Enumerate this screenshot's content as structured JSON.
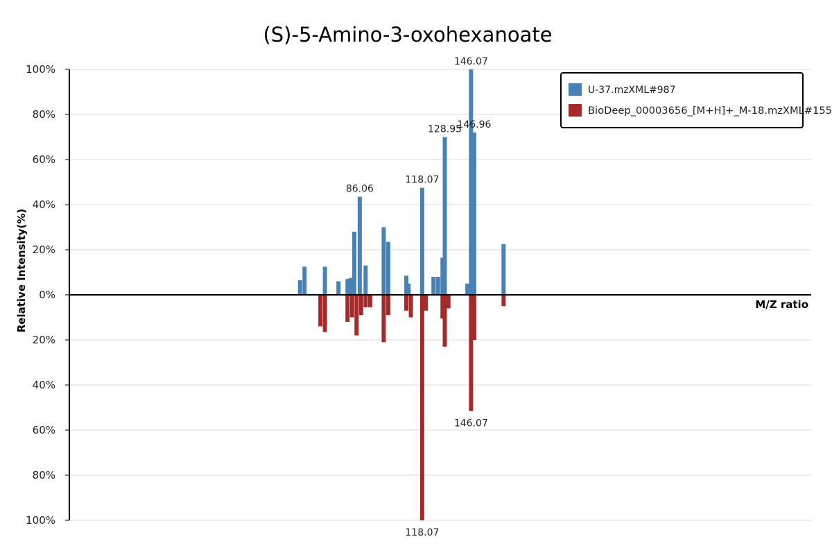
{
  "chart_data": {
    "type": "bar",
    "subtype": "mirror-spectrum",
    "title": "(S)-5-Amino-3-oxohexanoate",
    "xlabel": "M/Z ratio",
    "ylabel": "Relative Intensity(%)",
    "y_ticks_top": [
      "100%",
      "80%",
      "60%",
      "40%",
      "20%",
      "0%"
    ],
    "y_ticks_bottom": [
      "20%",
      "40%",
      "60%",
      "80%",
      "100%"
    ],
    "ylim": [
      -100,
      100
    ],
    "xlim": [
      10,
      174
    ],
    "grid": true,
    "legend_position": "top-right",
    "colors": {
      "top": "#4682b4",
      "bottom": "#a52a2a"
    },
    "series": [
      {
        "name": "U-37.mzXML#987",
        "direction": "up",
        "peaks": [
          {
            "mz": 61.0,
            "intensity": 6.5
          },
          {
            "mz": 62.0,
            "intensity": 12.5
          },
          {
            "mz": 66.5,
            "intensity": 12.5
          },
          {
            "mz": 69.5,
            "intensity": 6.0
          },
          {
            "mz": 71.5,
            "intensity": 7.0
          },
          {
            "mz": 72.2,
            "intensity": 7.5
          },
          {
            "mz": 73.0,
            "intensity": 28.0
          },
          {
            "mz": 74.2,
            "intensity": 43.5,
            "label": "86.06"
          },
          {
            "mz": 75.5,
            "intensity": 13.0
          },
          {
            "mz": 79.5,
            "intensity": 30.0
          },
          {
            "mz": 80.5,
            "intensity": 23.5
          },
          {
            "mz": 84.5,
            "intensity": 8.5
          },
          {
            "mz": 85.0,
            "intensity": 5.0
          },
          {
            "mz": 88.0,
            "intensity": 47.5,
            "label": "118.07"
          },
          {
            "mz": 90.5,
            "intensity": 8.0
          },
          {
            "mz": 91.5,
            "intensity": 8.0
          },
          {
            "mz": 92.5,
            "intensity": 16.5
          },
          {
            "mz": 93.0,
            "intensity": 70.0,
            "label": "128.95"
          },
          {
            "mz": 98.0,
            "intensity": 5.0
          },
          {
            "mz": 98.8,
            "intensity": 100.0,
            "label": "146.07"
          },
          {
            "mz": 99.5,
            "intensity": 72.0,
            "label": "146.96"
          },
          {
            "mz": 106.0,
            "intensity": 22.5
          }
        ]
      },
      {
        "name": "BioDeep_00003656_[M+H]+_M-18.mzXML#155",
        "direction": "down",
        "peaks": [
          {
            "mz": 65.5,
            "intensity": 14.0
          },
          {
            "mz": 66.5,
            "intensity": 16.5
          },
          {
            "mz": 71.5,
            "intensity": 12.0
          },
          {
            "mz": 72.5,
            "intensity": 10.0
          },
          {
            "mz": 73.5,
            "intensity": 18.0
          },
          {
            "mz": 74.5,
            "intensity": 9.0
          },
          {
            "mz": 75.5,
            "intensity": 5.5
          },
          {
            "mz": 76.5,
            "intensity": 5.5
          },
          {
            "mz": 79.5,
            "intensity": 21.0
          },
          {
            "mz": 80.5,
            "intensity": 9.0
          },
          {
            "mz": 84.5,
            "intensity": 7.0
          },
          {
            "mz": 85.5,
            "intensity": 10.0
          },
          {
            "mz": 88.0,
            "intensity": 100.0,
            "label": "118.07"
          },
          {
            "mz": 88.8,
            "intensity": 7.0
          },
          {
            "mz": 92.5,
            "intensity": 10.5
          },
          {
            "mz": 93.0,
            "intensity": 23.0
          },
          {
            "mz": 93.8,
            "intensity": 6.0
          },
          {
            "mz": 98.8,
            "intensity": 51.5,
            "label": "146.07"
          },
          {
            "mz": 99.5,
            "intensity": 20.0
          },
          {
            "mz": 106.0,
            "intensity": 5.0
          }
        ]
      }
    ]
  }
}
